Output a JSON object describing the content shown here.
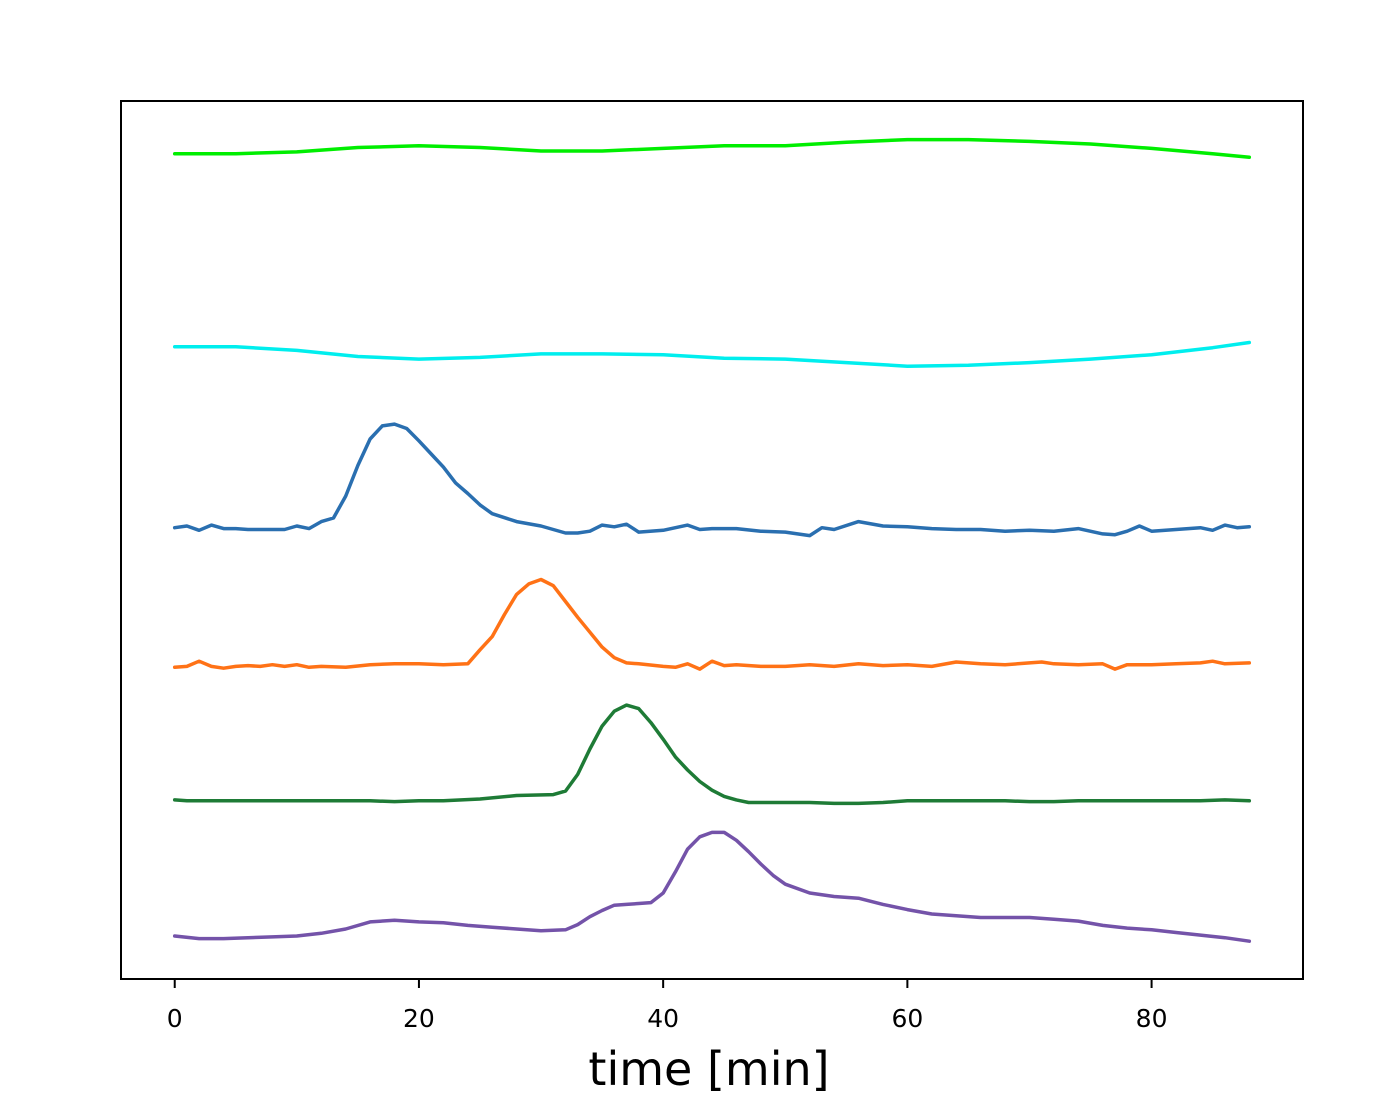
{
  "chart_data": {
    "type": "line",
    "title": "",
    "xlabel": "time [min]",
    "ylabel": "",
    "xlim": [
      -4.4,
      92.4
    ],
    "ylim": [
      0,
      100
    ],
    "xticks": [
      0,
      20,
      40,
      60,
      80
    ],
    "xtick_labels": [
      "0",
      "20",
      "40",
      "60",
      "80"
    ],
    "yticks_visible": false,
    "grid": false,
    "legend": "none",
    "series": [
      {
        "color": "#00ee00",
        "points": [
          [
            0,
            94
          ],
          [
            5,
            94
          ],
          [
            10,
            94.2
          ],
          [
            15,
            94.7
          ],
          [
            20,
            94.9
          ],
          [
            25,
            94.7
          ],
          [
            30,
            94.3
          ],
          [
            35,
            94.3
          ],
          [
            40,
            94.6
          ],
          [
            45,
            94.9
          ],
          [
            50,
            94.9
          ],
          [
            55,
            95.3
          ],
          [
            60,
            95.6
          ],
          [
            65,
            95.6
          ],
          [
            70,
            95.4
          ],
          [
            75,
            95.1
          ],
          [
            80,
            94.6
          ],
          [
            85,
            94.0
          ],
          [
            88,
            93.6
          ]
        ]
      },
      {
        "color": "#00eeee",
        "points": [
          [
            0,
            72
          ],
          [
            5,
            72
          ],
          [
            10,
            71.6
          ],
          [
            15,
            70.9
          ],
          [
            20,
            70.6
          ],
          [
            25,
            70.8
          ],
          [
            30,
            71.2
          ],
          [
            35,
            71.2
          ],
          [
            40,
            71.1
          ],
          [
            45,
            70.7
          ],
          [
            50,
            70.6
          ],
          [
            55,
            70.2
          ],
          [
            60,
            69.8
          ],
          [
            65,
            69.9
          ],
          [
            70,
            70.2
          ],
          [
            75,
            70.6
          ],
          [
            80,
            71.1
          ],
          [
            85,
            71.9
          ],
          [
            88,
            72.5
          ]
        ]
      },
      {
        "color": "#2a6fb0",
        "points": [
          [
            0,
            51.4
          ],
          [
            1,
            51.6
          ],
          [
            2,
            51.1
          ],
          [
            3,
            51.7
          ],
          [
            4,
            51.3
          ],
          [
            5,
            51.3
          ],
          [
            6,
            51.2
          ],
          [
            8,
            51.2
          ],
          [
            9,
            51.2
          ],
          [
            10,
            51.6
          ],
          [
            11,
            51.3
          ],
          [
            12,
            52.1
          ],
          [
            13,
            52.5
          ],
          [
            14,
            55
          ],
          [
            15,
            58.5
          ],
          [
            16,
            61.5
          ],
          [
            17,
            63
          ],
          [
            18,
            63.2
          ],
          [
            19,
            62.7
          ],
          [
            20,
            61.3
          ],
          [
            21,
            59.8
          ],
          [
            22,
            58.3
          ],
          [
            23,
            56.5
          ],
          [
            24,
            55.3
          ],
          [
            25,
            54
          ],
          [
            26,
            53
          ],
          [
            28,
            52.1
          ],
          [
            30,
            51.6
          ],
          [
            32,
            50.8
          ],
          [
            33,
            50.8
          ],
          [
            34,
            51
          ],
          [
            35,
            51.7
          ],
          [
            36,
            51.5
          ],
          [
            37,
            51.8
          ],
          [
            38,
            50.9
          ],
          [
            40,
            51.1
          ],
          [
            42,
            51.7
          ],
          [
            43,
            51.2
          ],
          [
            44,
            51.3
          ],
          [
            46,
            51.3
          ],
          [
            48,
            51
          ],
          [
            50,
            50.9
          ],
          [
            52,
            50.5
          ],
          [
            53,
            51.4
          ],
          [
            54,
            51.2
          ],
          [
            56,
            52.1
          ],
          [
            58,
            51.6
          ],
          [
            60,
            51.5
          ],
          [
            62,
            51.3
          ],
          [
            64,
            51.2
          ],
          [
            66,
            51.2
          ],
          [
            68,
            51
          ],
          [
            70,
            51.1
          ],
          [
            72,
            51
          ],
          [
            74,
            51.3
          ],
          [
            76,
            50.7
          ],
          [
            77,
            50.6
          ],
          [
            78,
            51
          ],
          [
            79,
            51.6
          ],
          [
            80,
            51
          ],
          [
            82,
            51.2
          ],
          [
            84,
            51.4
          ],
          [
            85,
            51.1
          ],
          [
            86,
            51.7
          ],
          [
            87,
            51.4
          ],
          [
            88,
            51.5
          ]
        ]
      },
      {
        "color": "#ff7216",
        "points": [
          [
            0,
            35.5
          ],
          [
            1,
            35.6
          ],
          [
            2,
            36.2
          ],
          [
            3,
            35.6
          ],
          [
            4,
            35.4
          ],
          [
            5,
            35.6
          ],
          [
            6,
            35.7
          ],
          [
            7,
            35.6
          ],
          [
            8,
            35.8
          ],
          [
            9,
            35.6
          ],
          [
            10,
            35.8
          ],
          [
            11,
            35.5
          ],
          [
            12,
            35.6
          ],
          [
            14,
            35.5
          ],
          [
            16,
            35.8
          ],
          [
            18,
            35.9
          ],
          [
            20,
            35.9
          ],
          [
            22,
            35.8
          ],
          [
            24,
            35.9
          ],
          [
            25,
            37.5
          ],
          [
            26,
            39
          ],
          [
            27,
            41.5
          ],
          [
            28,
            43.8
          ],
          [
            29,
            45
          ],
          [
            30,
            45.5
          ],
          [
            31,
            44.8
          ],
          [
            32,
            43
          ],
          [
            33,
            41.2
          ],
          [
            34,
            39.5
          ],
          [
            35,
            37.8
          ],
          [
            36,
            36.6
          ],
          [
            37,
            36
          ],
          [
            38,
            35.9
          ],
          [
            40,
            35.6
          ],
          [
            41,
            35.5
          ],
          [
            42,
            35.9
          ],
          [
            43,
            35.3
          ],
          [
            44,
            36.2
          ],
          [
            45,
            35.7
          ],
          [
            46,
            35.8
          ],
          [
            48,
            35.6
          ],
          [
            50,
            35.6
          ],
          [
            52,
            35.8
          ],
          [
            54,
            35.6
          ],
          [
            56,
            35.9
          ],
          [
            58,
            35.7
          ],
          [
            60,
            35.8
          ],
          [
            62,
            35.6
          ],
          [
            64,
            36.1
          ],
          [
            66,
            35.9
          ],
          [
            68,
            35.8
          ],
          [
            70,
            36
          ],
          [
            71,
            36.1
          ],
          [
            72,
            35.9
          ],
          [
            74,
            35.8
          ],
          [
            76,
            35.9
          ],
          [
            77,
            35.3
          ],
          [
            78,
            35.8
          ],
          [
            80,
            35.8
          ],
          [
            82,
            35.9
          ],
          [
            84,
            36
          ],
          [
            85,
            36.2
          ],
          [
            86,
            35.9
          ],
          [
            88,
            36
          ]
        ]
      },
      {
        "color": "#1e7b36",
        "points": [
          [
            0,
            20.4
          ],
          [
            1,
            20.3
          ],
          [
            2,
            20.3
          ],
          [
            4,
            20.3
          ],
          [
            6,
            20.3
          ],
          [
            8,
            20.3
          ],
          [
            10,
            20.3
          ],
          [
            12,
            20.3
          ],
          [
            14,
            20.3
          ],
          [
            16,
            20.3
          ],
          [
            18,
            20.2
          ],
          [
            20,
            20.3
          ],
          [
            22,
            20.3
          ],
          [
            25,
            20.5
          ],
          [
            28,
            20.9
          ],
          [
            31,
            21
          ],
          [
            32,
            21.4
          ],
          [
            33,
            23.3
          ],
          [
            34,
            26.2
          ],
          [
            35,
            28.8
          ],
          [
            36,
            30.5
          ],
          [
            37,
            31.2
          ],
          [
            38,
            30.8
          ],
          [
            39,
            29.2
          ],
          [
            40,
            27.3
          ],
          [
            41,
            25.3
          ],
          [
            42,
            23.8
          ],
          [
            43,
            22.5
          ],
          [
            44,
            21.5
          ],
          [
            45,
            20.8
          ],
          [
            46,
            20.4
          ],
          [
            47,
            20.1
          ],
          [
            48,
            20.1
          ],
          [
            50,
            20.1
          ],
          [
            52,
            20.1
          ],
          [
            54,
            20.0
          ],
          [
            56,
            20.0
          ],
          [
            58,
            20.1
          ],
          [
            60,
            20.3
          ],
          [
            62,
            20.3
          ],
          [
            64,
            20.3
          ],
          [
            66,
            20.3
          ],
          [
            68,
            20.3
          ],
          [
            70,
            20.2
          ],
          [
            72,
            20.2
          ],
          [
            74,
            20.3
          ],
          [
            76,
            20.3
          ],
          [
            78,
            20.3
          ],
          [
            80,
            20.3
          ],
          [
            82,
            20.3
          ],
          [
            84,
            20.3
          ],
          [
            86,
            20.4
          ],
          [
            88,
            20.3
          ]
        ]
      },
      {
        "color": "#7453a9",
        "points": [
          [
            0,
            4.9
          ],
          [
            2,
            4.6
          ],
          [
            4,
            4.6
          ],
          [
            6,
            4.7
          ],
          [
            8,
            4.8
          ],
          [
            10,
            4.9
          ],
          [
            12,
            5.2
          ],
          [
            14,
            5.7
          ],
          [
            16,
            6.5
          ],
          [
            18,
            6.7
          ],
          [
            20,
            6.5
          ],
          [
            22,
            6.4
          ],
          [
            24,
            6.1
          ],
          [
            26,
            5.9
          ],
          [
            28,
            5.7
          ],
          [
            30,
            5.5
          ],
          [
            32,
            5.6
          ],
          [
            33,
            6.2
          ],
          [
            34,
            7.1
          ],
          [
            35,
            7.8
          ],
          [
            36,
            8.4
          ],
          [
            37,
            8.5
          ],
          [
            38,
            8.6
          ],
          [
            39,
            8.7
          ],
          [
            40,
            9.8
          ],
          [
            41,
            12.2
          ],
          [
            42,
            14.8
          ],
          [
            43,
            16.2
          ],
          [
            44,
            16.7
          ],
          [
            45,
            16.7
          ],
          [
            46,
            15.8
          ],
          [
            47,
            14.5
          ],
          [
            48,
            13.1
          ],
          [
            49,
            11.8
          ],
          [
            50,
            10.8
          ],
          [
            52,
            9.8
          ],
          [
            54,
            9.4
          ],
          [
            56,
            9.2
          ],
          [
            58,
            8.5
          ],
          [
            60,
            7.9
          ],
          [
            62,
            7.4
          ],
          [
            64,
            7.2
          ],
          [
            66,
            7
          ],
          [
            68,
            7
          ],
          [
            70,
            7
          ],
          [
            72,
            6.8
          ],
          [
            74,
            6.6
          ],
          [
            76,
            6.1
          ],
          [
            78,
            5.8
          ],
          [
            80,
            5.6
          ],
          [
            82,
            5.3
          ],
          [
            84,
            5.0
          ],
          [
            86,
            4.7
          ],
          [
            88,
            4.3
          ]
        ]
      }
    ]
  }
}
